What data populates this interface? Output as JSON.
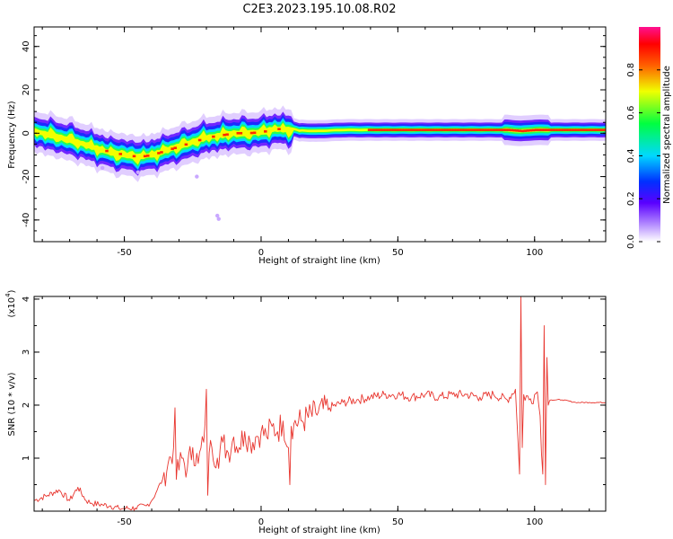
{
  "title": "C2E3.2023.195.10.08.R02",
  "colors": {
    "snr_line": "#e8352e",
    "axis": "#000000",
    "background": "#ffffff"
  },
  "chart_data": [
    {
      "type": "heatmap",
      "xlabel": "Height of straight line (km)",
      "ylabel": "Frequency (Hz)",
      "xlim": [
        -83,
        126
      ],
      "ylim": [
        -50,
        49
      ],
      "xticks": [
        -50,
        0,
        50,
        100
      ],
      "yticks": [
        -40,
        -20,
        0,
        20,
        40
      ],
      "colorbar": {
        "label": "Normalized spectral amplitude",
        "range": [
          0,
          1
        ],
        "ticks": [
          0.0,
          0.2,
          0.4,
          0.6,
          0.8
        ],
        "colormap": "rainbow (white-purple-blue-cyan-green-yellow-red-pink)"
      },
      "ridge": {
        "description": "main frequency trace (x in km, frequency in Hz)",
        "x": [
          -83,
          -75,
          -70,
          -65,
          -60,
          -55,
          -50,
          -45,
          -40,
          -35,
          -30,
          -25,
          -20,
          -15,
          -10,
          -5,
          0,
          5,
          10,
          20,
          30,
          40,
          50,
          60,
          70,
          80,
          90,
          95,
          100,
          105,
          115,
          126
        ],
        "y": [
          1,
          -1.5,
          -3,
          -5,
          -7,
          -9,
          -10,
          -11,
          -10,
          -8,
          -6,
          -4,
          -2,
          -1,
          0,
          0,
          0.5,
          2,
          1.5,
          1,
          1.5,
          1.5,
          1.5,
          1.5,
          1.5,
          1.5,
          1.5,
          1,
          1.5,
          1.5,
          1.5,
          1.5
        ]
      }
    },
    {
      "type": "line",
      "xlabel": "Height of straight line (km)",
      "ylabel": "SNR (10 * v/v)",
      "y_multiplier_label": "(x10",
      "y_multiplier_exp": "4",
      "xlim": [
        -83,
        126
      ],
      "ylim": [
        0,
        4.05
      ],
      "xticks": [
        -50,
        0,
        50,
        100
      ],
      "yticks": [
        1,
        2,
        3,
        4
      ],
      "series": [
        {
          "x": [
            -83,
            -78,
            -74,
            -70,
            -67,
            -64,
            -62,
            -58,
            -55,
            -52,
            -50,
            -46,
            -42,
            -40,
            -38,
            -36,
            -34,
            -32,
            -31.5,
            -31,
            -29,
            -27,
            -25,
            -23,
            -21,
            -20,
            -19.5,
            -19,
            -18,
            -16,
            -14,
            -12,
            -10,
            -8,
            -6,
            -4,
            -2,
            0,
            2,
            4,
            6,
            8,
            10,
            10.5,
            11,
            12,
            15,
            20,
            25,
            30,
            35,
            40,
            45,
            50,
            55,
            60,
            65,
            70,
            75,
            80,
            85,
            90,
            93,
            94.5,
            95,
            95.5,
            96,
            98,
            100,
            101,
            102,
            103,
            103.5,
            104,
            104.5,
            105,
            106,
            110,
            115,
            120,
            126
          ],
          "values": [
            0.2,
            0.3,
            0.4,
            0.2,
            0.45,
            0.2,
            0.15,
            0.12,
            0.1,
            0.05,
            0.05,
            0.06,
            0.1,
            0.2,
            0.4,
            0.6,
            0.9,
            1.2,
            1.95,
            0.6,
            1.0,
            0.8,
            1.2,
            0.9,
            1.3,
            2.3,
            0.3,
            1.1,
            1.2,
            1.0,
            1.3,
            1.1,
            1.4,
            1.2,
            1.5,
            1.3,
            1.4,
            1.5,
            1.4,
            1.6,
            1.5,
            1.7,
            1.2,
            0.5,
            1.6,
            1.65,
            1.7,
            1.85,
            1.95,
            2.05,
            2.1,
            2.15,
            2.2,
            2.2,
            2.15,
            2.2,
            2.15,
            2.2,
            2.2,
            2.15,
            2.2,
            2.1,
            2.3,
            0.7,
            4.05,
            1.2,
            2.2,
            2.1,
            2.2,
            2.25,
            1.8,
            0.7,
            3.5,
            0.5,
            2.9,
            2.0,
            2.1,
            2.1,
            2.05,
            2.05,
            2.05
          ]
        }
      ]
    }
  ]
}
